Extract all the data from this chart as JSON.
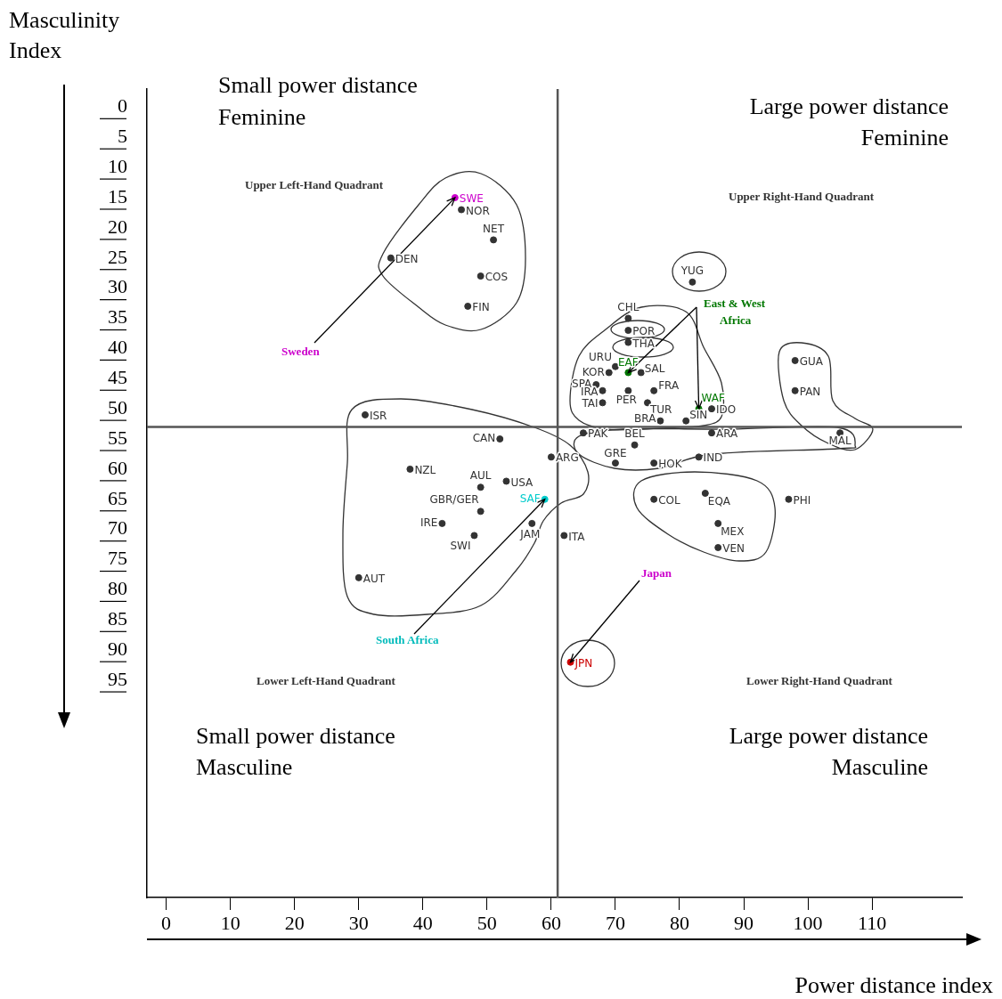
{
  "chart_data": {
    "type": "scatter",
    "xlabel": "Power distance index",
    "ylabel": "Masculinity Index",
    "xlim": [
      -3,
      124
    ],
    "xticks": [
      0,
      10,
      20,
      30,
      40,
      50,
      60,
      70,
      80,
      90,
      100,
      110
    ],
    "ylim": [
      131,
      -3
    ],
    "yticks": [
      0,
      5,
      10,
      15,
      20,
      25,
      30,
      35,
      40,
      45,
      50,
      55,
      60,
      65,
      70,
      75,
      80,
      85,
      90,
      95
    ],
    "grid": false,
    "legend": false,
    "marker": "circle",
    "ref_lines": [
      {
        "axis": "x",
        "value": 61,
        "color": "#555555"
      },
      {
        "axis": "y",
        "value": 53,
        "color": "#555555"
      }
    ],
    "series": [
      {
        "x": [
          45,
          46,
          51,
          35,
          49,
          47,
          31,
          52,
          38,
          49,
          53,
          49,
          43,
          48,
          30,
          59,
          57,
          62,
          60,
          63,
          72,
          72,
          72,
          70,
          69,
          72,
          74,
          67,
          76,
          68,
          72,
          75,
          68,
          77,
          83,
          81,
          85,
          82,
          98,
          98,
          105,
          85,
          65,
          73,
          70,
          76,
          83,
          97,
          76,
          84,
          86,
          86
        ],
        "values": [
          15,
          17,
          22,
          25,
          28,
          33,
          51,
          55,
          60,
          63,
          62,
          67,
          69,
          71,
          78,
          65,
          69,
          71,
          58,
          92,
          35,
          37,
          39,
          43,
          44,
          44,
          44,
          46,
          47,
          47,
          47,
          49,
          49,
          52,
          50,
          52,
          50,
          29,
          42,
          47,
          54,
          54,
          54,
          56,
          59,
          59,
          58,
          65,
          65,
          64,
          69,
          73
        ],
        "value_labels": [
          "SWE",
          "NOR",
          "NET",
          "DEN",
          "COS",
          "FIN",
          "ISR",
          "CAN",
          "NZL",
          "AUL",
          "USA",
          "GBR/GER",
          "IRE",
          "SWI",
          "AUT",
          "SAF",
          "JAM",
          "ITA",
          "ARG",
          "JPN",
          "CHL",
          "POR",
          "THA",
          "URU",
          "KOR",
          "EAF",
          "SAL",
          "SPA",
          "FRA",
          "IRA",
          "PER",
          "TUR",
          "TAI",
          "BRA",
          "WAF",
          "SIN",
          "IDO",
          "YUG",
          "GUA",
          "PAN",
          "MAL",
          "ARA",
          "PAK",
          "BEL",
          "GRE",
          "HOK",
          "IND",
          "PHI",
          "COL",
          "EQA",
          "MEX",
          "VEN"
        ],
        "colors": [
          "#cc00cc",
          "#333333",
          "#333333",
          "#333333",
          "#333333",
          "#333333",
          "#333333",
          "#333333",
          "#333333",
          "#333333",
          "#333333",
          "#333333",
          "#333333",
          "#333333",
          "#333333",
          "#00cccc",
          "#333333",
          "#333333",
          "#333333",
          "#cc0000",
          "#333333",
          "#333333",
          "#333333",
          "#333333",
          "#333333",
          "#007700",
          "#333333",
          "#333333",
          "#333333",
          "#333333",
          "#333333",
          "#333333",
          "#333333",
          "#333333",
          "#007700",
          "#333333",
          "#333333",
          "#333333",
          "#333333",
          "#333333",
          "#333333",
          "#333333",
          "#333333",
          "#333333",
          "#333333",
          "#333333",
          "#333333",
          "#333333",
          "#333333",
          "#333333",
          "#333333",
          "#333333"
        ]
      }
    ],
    "annotations": [
      "Small power distance",
      "Feminine",
      "Large power distance",
      "Feminine",
      "Small power distance",
      "Masculine",
      "Large power distance",
      "Masculine",
      "Upper Left-Hand Quadrant",
      "Upper Right-Hand Quadrant",
      "Lower Left-Hand Quadrant",
      "Lower Right-Hand Quadrant",
      {
        "text": "Sweden",
        "x": 45,
        "y": 15
      },
      {
        "text": "South Africa",
        "x": 59,
        "y": 65
      },
      {
        "text": "Japan",
        "x": 63,
        "y": 92
      },
      {
        "text": "East & West",
        "x": 83,
        "y": 50
      },
      "Africa"
    ]
  }
}
